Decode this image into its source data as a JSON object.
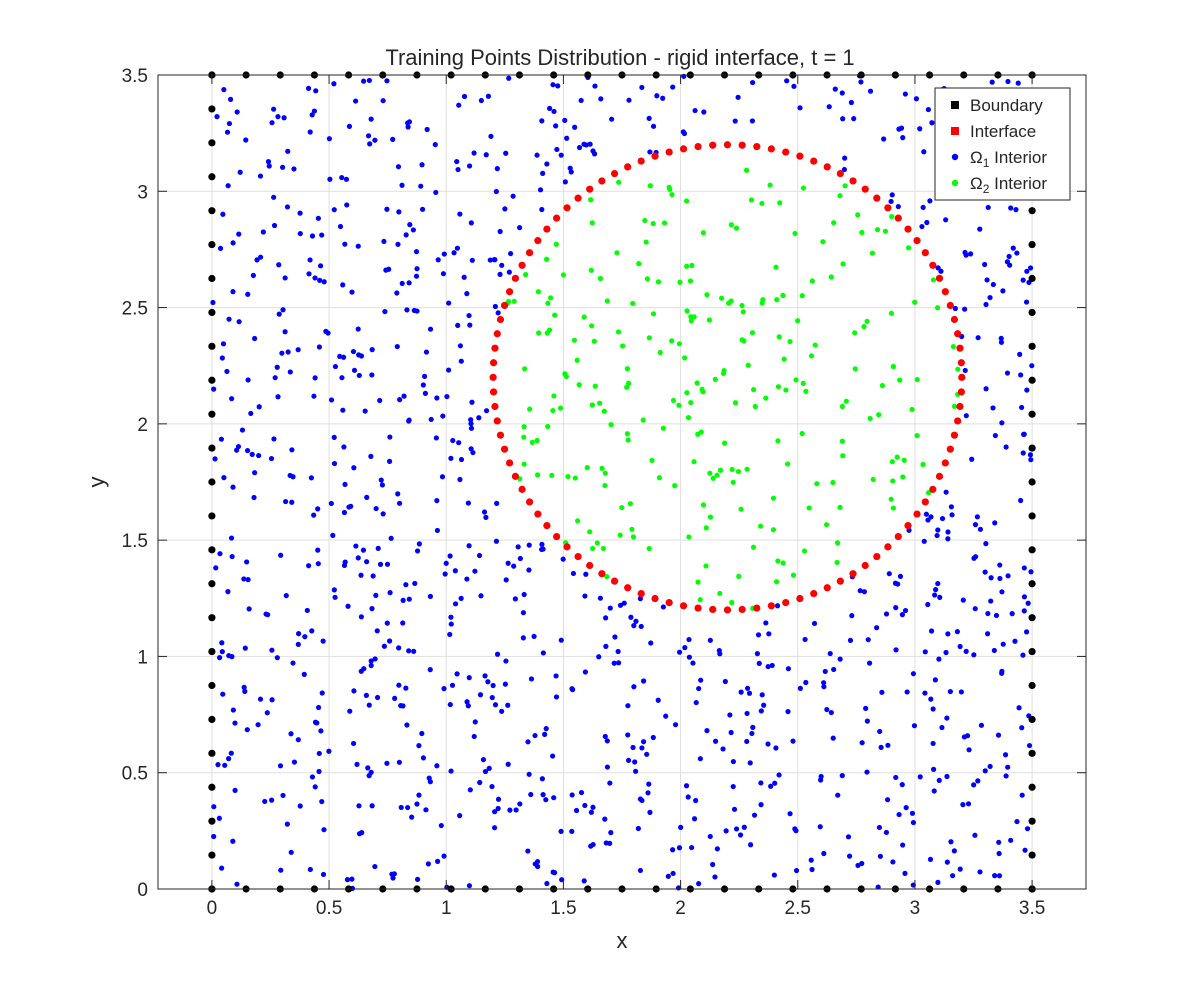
{
  "chart_data": {
    "type": "scatter",
    "title": "Training Points Distribution - rigid interface, t = 1",
    "xlabel": "x",
    "ylabel": "y",
    "xlim": [
      -0.23,
      3.73
    ],
    "ylim": [
      0,
      3.5
    ],
    "xticks": [
      0,
      0.5,
      1,
      1.5,
      2,
      2.5,
      3,
      3.5
    ],
    "xtick_labels": [
      "0",
      "0.5",
      "1",
      "1.5",
      "2",
      "2.5",
      "3",
      "3.5"
    ],
    "yticks": [
      0,
      0.5,
      1,
      1.5,
      2,
      2.5,
      3,
      3.5
    ],
    "ytick_labels": [
      "0",
      "0.5",
      "1",
      "1.5",
      "2",
      "2.5",
      "3",
      "3.5"
    ],
    "grid": true,
    "legend_position": "top-right",
    "domain": {
      "xmin": 0,
      "xmax": 3.5,
      "ymin": 0,
      "ymax": 3.5
    },
    "interface_circle": {
      "cx": 2.2,
      "cy": 2.2,
      "r": 1.0
    },
    "counts": {
      "boundary_per_side": 25,
      "interface": 100,
      "omega1_interior": 1000,
      "omega2_interior": 250
    },
    "series": [
      {
        "name": "Boundary",
        "color": "#000000",
        "shape": "filled-circle",
        "legend_symbol": "square"
      },
      {
        "name": "Interface",
        "color": "#ff0000",
        "shape": "filled-circle",
        "legend_symbol": "square"
      },
      {
        "name": "Ω",
        "sub": "1",
        "suffix": " Interior",
        "color": "#0000ff",
        "shape": "dot",
        "legend_symbol": "dot"
      },
      {
        "name": "Ω",
        "sub": "2",
        "suffix": " Interior",
        "color": "#00ff00",
        "shape": "dot",
        "legend_symbol": "dot"
      }
    ]
  }
}
